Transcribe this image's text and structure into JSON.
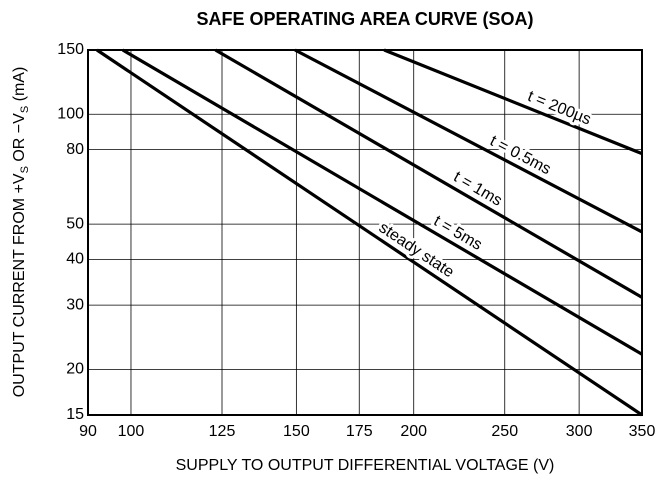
{
  "chart_data": {
    "type": "line",
    "title": "SAFE OPERATING AREA CURVE (SOA)",
    "xlabel": "SUPPLY TO OUTPUT DIFFERENTIAL VOLTAGE (V)",
    "ylabel_parts": [
      "OUTPUT CURRENT FROM +V",
      "S",
      " OR −V",
      "S",
      " (mA)"
    ],
    "xscale": "log",
    "yscale": "log",
    "grid": true,
    "xlim": [
      90,
      350
    ],
    "ylim": [
      15,
      150
    ],
    "xticks": [
      90,
      100,
      125,
      150,
      175,
      200,
      250,
      300,
      350
    ],
    "yticks": [
      15,
      20,
      30,
      40,
      50,
      80,
      100,
      150
    ],
    "series": [
      {
        "name": "steady state",
        "color": "#000000",
        "x": [
          92,
          350
        ],
        "values": [
          150,
          15
        ]
      },
      {
        "name": "t = 5ms",
        "color": "#000000",
        "x": [
          98,
          350
        ],
        "values": [
          150,
          22
        ]
      },
      {
        "name": "t = 1ms",
        "color": "#000000",
        "x": [
          123,
          350
        ],
        "values": [
          150,
          31.5
        ]
      },
      {
        "name": "t = 0.5ms",
        "color": "#000000",
        "x": [
          149.5,
          350
        ],
        "values": [
          150,
          47.6
        ]
      },
      {
        "name": "t = 200µs",
        "color": "#000000",
        "x": [
          186,
          350
        ],
        "values": [
          150,
          78
        ]
      }
    ]
  }
}
